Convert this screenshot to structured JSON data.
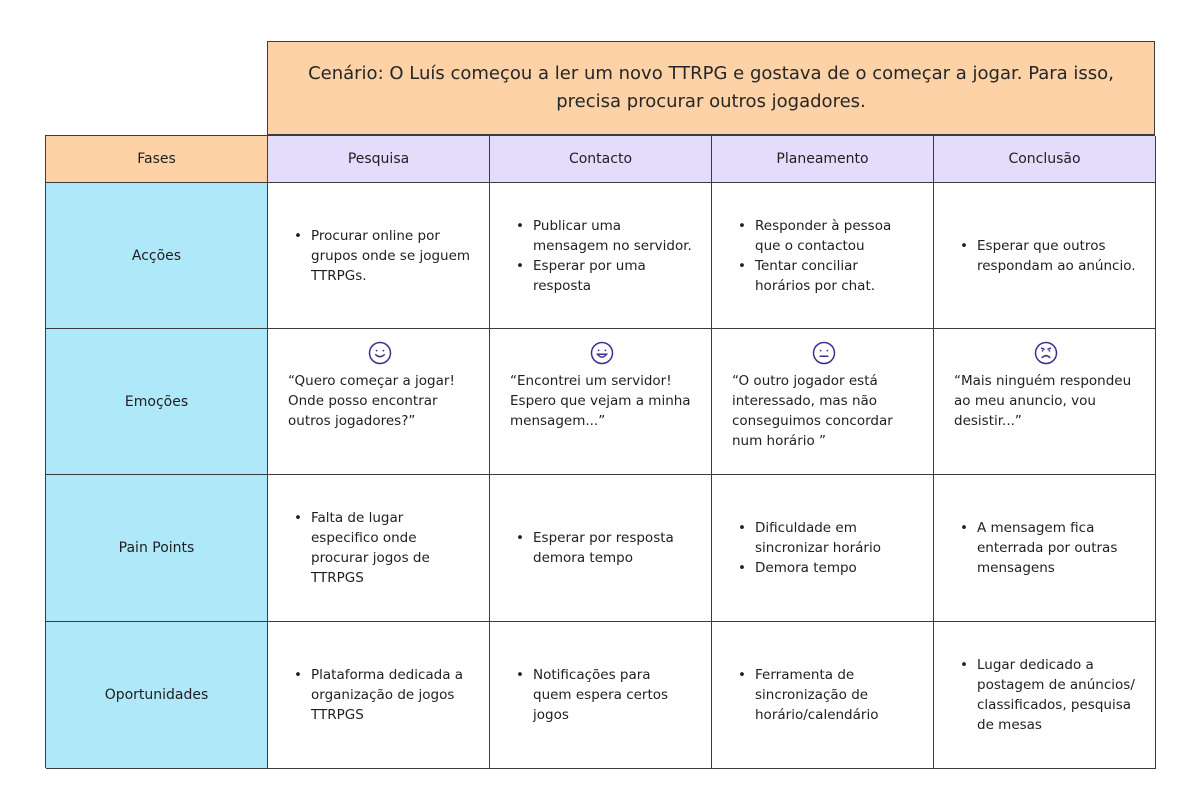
{
  "scenario": "Cenário: O Luís começou a ler um novo TTRPG e gostava de o começar a jogar. Para isso, precisa procurar outros jogadores.",
  "header": {
    "fases": "Fases",
    "phases": [
      "Pesquisa",
      "Contacto",
      "Planeamento",
      "Conclusão"
    ]
  },
  "rows": {
    "accoes": {
      "label": "Acções",
      "cells": [
        [
          "Procurar online por grupos onde se joguem TTRPGs."
        ],
        [
          "Publicar uma mensagem no servidor.",
          "Esperar por uma resposta"
        ],
        [
          "Responder à pessoa que o contactou",
          "Tentar conciliar horários por chat."
        ],
        [
          "Esperar que outros respondam ao anúncio."
        ]
      ]
    },
    "emocoes": {
      "label": "Emoções",
      "cells": [
        {
          "face": "smile-face-icon",
          "quote": "“Quero começar a jogar! Onde posso encontrar outros jogadores?”"
        },
        {
          "face": "grin-face-icon",
          "quote": "“Encontrei um servidor! Espero que vejam a minha mensagem...”"
        },
        {
          "face": "neutral-face-icon",
          "quote": "“O outro jogador está interessado, mas não conseguimos concordar num horário ”"
        },
        {
          "face": "sad-face-icon",
          "quote": "“Mais ninguém respondeu ao meu anuncio, vou desistir...”"
        }
      ]
    },
    "pain_points": {
      "label": "Pain Points",
      "cells": [
        [
          "Falta de lugar especifico onde procurar jogos de TTRPGS"
        ],
        [
          "Esperar por resposta demora tempo"
        ],
        [
          "Dificuldade em sincronizar horário",
          "Demora tempo"
        ],
        [
          "A mensagem fica enterrada por outras mensagens"
        ]
      ]
    },
    "oportunidades": {
      "label": "Oportunidades",
      "cells": [
        [
          "Plataforma dedicada a organização de jogos TTRPGS"
        ],
        [
          "Notificações para quem espera certos jogos"
        ],
        [
          "Ferramenta de sincronização de horário/calendário"
        ],
        [
          "Lugar dedicado a postagem de anúncios/ classificados, pesquisa de mesas"
        ]
      ]
    }
  },
  "colors": {
    "scenario_bg": "#fcd2a6",
    "phase_bg": "#e3dcfb",
    "row_label_bg": "#aee8f9",
    "icon_stroke": "#3b2f8f"
  }
}
